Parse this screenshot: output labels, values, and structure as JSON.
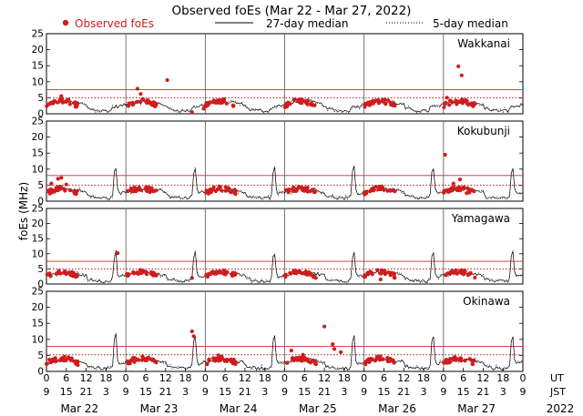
{
  "chart_data": {
    "type": "scatter",
    "title": "Observed foEs (Mar 22 - Mar 27, 2022)",
    "ylabel": "foEs (MHz)",
    "ylim": [
      0,
      25
    ],
    "yticks": [
      0,
      5,
      10,
      15,
      20,
      25
    ],
    "year": "2022",
    "legend": {
      "observed": "Observed foEs",
      "median27": "27-day median",
      "median5": "5-day median"
    },
    "axis_labels": {
      "ut": "UT",
      "jst": "JST"
    },
    "days": [
      "Mar 22",
      "Mar 23",
      "Mar 24",
      "Mar 25",
      "Mar 26",
      "Mar 27"
    ],
    "ut_ticks": [
      "0",
      "6",
      "12",
      "18",
      "0",
      "6",
      "12",
      "18",
      "0",
      "6",
      "12",
      "18",
      "0",
      "6",
      "12",
      "18",
      "0",
      "6",
      "12",
      "18",
      "0",
      "6",
      "12",
      "18",
      "0"
    ],
    "jst_ticks": [
      "9",
      "15",
      "21",
      "3",
      "9",
      "15",
      "21",
      "3",
      "9",
      "15",
      "21",
      "3",
      "9",
      "15",
      "21",
      "3",
      "9",
      "15",
      "21",
      "3",
      "9",
      "15",
      "21",
      "3",
      "9"
    ],
    "colors": {
      "observed": "#d01c1c",
      "median": "#000000",
      "refline": "#c83030"
    },
    "stations": [
      {
        "name": "Wakkanai",
        "ref_solid": 7.5,
        "ref_dotted": 5.0,
        "outliers": [
          {
            "t": 4.5,
            "v": 5.5
          },
          {
            "t": 27.5,
            "v": 7.8
          },
          {
            "t": 28.5,
            "v": 6.2
          },
          {
            "t": 32.0,
            "v": 3.5
          },
          {
            "t": 36.5,
            "v": 10.5
          },
          {
            "t": 44.0,
            "v": 0.5
          },
          {
            "t": 47.5,
            "v": 1.6
          },
          {
            "t": 75.0,
            "v": 4.5
          },
          {
            "t": 99.0,
            "v": 4.0
          },
          {
            "t": 121.0,
            "v": 5.0
          },
          {
            "t": 124.0,
            "v": 3.0
          },
          {
            "t": 124.5,
            "v": 14.8
          },
          {
            "t": 125.5,
            "v": 12.0
          }
        ]
      },
      {
        "name": "Kokubunji",
        "ref_solid": 8.0,
        "ref_dotted": 5.0,
        "outliers": [
          {
            "t": 1.5,
            "v": 5.5
          },
          {
            "t": 3.5,
            "v": 7.0
          },
          {
            "t": 4.5,
            "v": 7.3
          },
          {
            "t": 6.0,
            "v": 5.2
          },
          {
            "t": 120.5,
            "v": 14.5
          },
          {
            "t": 123.0,
            "v": 5.5
          },
          {
            "t": 125.0,
            "v": 6.8
          },
          {
            "t": 126.0,
            "v": 3.8
          },
          {
            "t": 127.0,
            "v": 2.5
          }
        ]
      },
      {
        "name": "Yamagawa",
        "ref_solid": 7.5,
        "ref_dotted": 5.0,
        "outliers": [
          {
            "t": 21.5,
            "v": 10.2
          },
          {
            "t": 44.0,
            "v": 2.0
          },
          {
            "t": 101.0,
            "v": 1.5
          }
        ]
      },
      {
        "name": "Okinawa",
        "ref_solid": 7.8,
        "ref_dotted": 5.2,
        "outliers": [
          {
            "t": 44.0,
            "v": 12.5
          },
          {
            "t": 44.5,
            "v": 11.0
          },
          {
            "t": 52.0,
            "v": 5.0
          },
          {
            "t": 53.0,
            "v": 4.5
          },
          {
            "t": 76.0,
            "v": 4.0
          },
          {
            "t": 77.5,
            "v": 5.2
          },
          {
            "t": 74.0,
            "v": 6.5
          },
          {
            "t": 84.0,
            "v": 14.0
          },
          {
            "t": 86.5,
            "v": 8.5
          },
          {
            "t": 87.0,
            "v": 7.0
          },
          {
            "t": 89.0,
            "v": 6.0
          }
        ]
      }
    ]
  }
}
